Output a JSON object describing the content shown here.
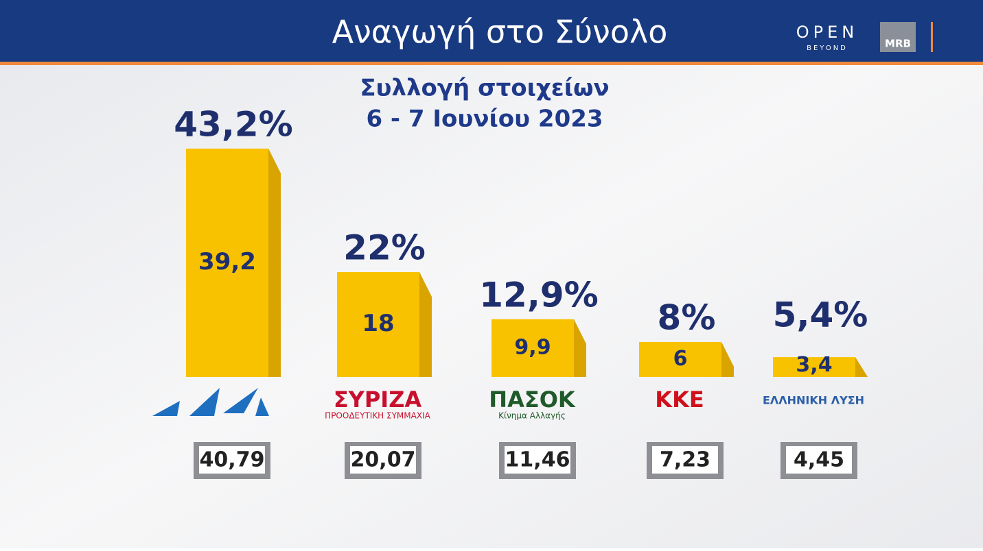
{
  "chart_data": {
    "type": "bar",
    "title": "Αναγωγή στο Σύνολο",
    "subtitle_lines": [
      "Συλλογή στοιχείων",
      "6 - 7 Ιουνίου 2023"
    ],
    "brand": {
      "open": "OPEN",
      "beyond": "BEYOND",
      "mrb": "MRB"
    },
    "categories": [
      null,
      "ΣΥΡΙΖΑ",
      "ΠΑΣΟΚ",
      "ΚΚΕ",
      "ΕΛΛΗΝΙΚΗ ΛΥΣΗ"
    ],
    "category_sublabels": [
      null,
      "ΠΡΟΟΔΕΥΤΙΚΗ ΣΥΜΜΑΧΙΑ",
      "Κίνημα Αλλαγής",
      null,
      null
    ],
    "category_colors": [
      "#1f6fc0",
      "#c8102e",
      "#1f5a2a",
      "#d0101b",
      "#2a5ea8"
    ],
    "values": [
      39.2,
      18,
      9.9,
      6,
      3.4
    ],
    "value_labels": [
      "39,2",
      "18",
      "9,9",
      "6",
      "3,4"
    ],
    "color": "#f8c200",
    "projection": {
      "values": [
        43.2,
        22,
        12.9,
        8,
        5.4
      ],
      "value_labels": [
        "43,2%",
        "22%",
        "12,9%",
        "8%",
        "5,4%"
      ]
    },
    "previous": {
      "values": [
        40.79,
        20.07,
        11.46,
        7.23,
        4.45
      ],
      "value_labels": [
        "40,79",
        "20,07",
        "11,46",
        "7,23",
        "4,45"
      ]
    }
  }
}
